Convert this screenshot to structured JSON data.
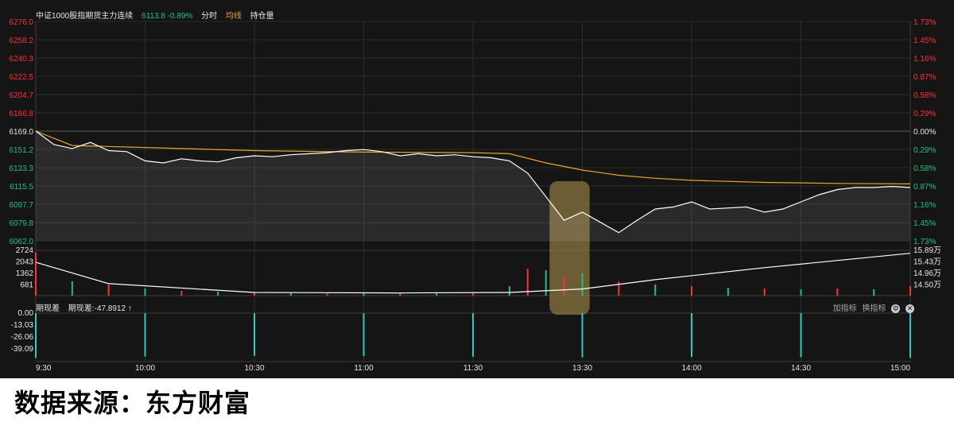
{
  "header": {
    "instrument": "中证1000股指期货主力连续",
    "price_change": "6113.8 -0.89%",
    "tab_intraday": "分时",
    "tab_avg": "均线",
    "tab_oi": "持仓量"
  },
  "sub_panel": {
    "title": "期现差",
    "value_label": "期现差:-47.8912 ↑",
    "add_indicator": "加指标",
    "switch_indicator": "换指标"
  },
  "source_caption": "数据来源：东方财富",
  "colors": {
    "price_line": "#ffffff",
    "avg_line": "#f0a030",
    "up": "#ff2f3a",
    "down": "#19c37d",
    "spread_bar": "#2cc9c9",
    "highlight": "#8a7640"
  },
  "chart_data": {
    "type": "line",
    "title": "",
    "x_ticks": [
      "9:30",
      "10:00",
      "10:30",
      "11:00",
      "11:30",
      "13:30",
      "14:00",
      "14:30",
      "15:00"
    ],
    "price_axis": {
      "ticks_left": [
        "6276.0",
        "6258.2",
        "6240.3",
        "6222.5",
        "6204.7",
        "6186.8",
        "6169.0",
        "6151.2",
        "6133.3",
        "6115.5",
        "6097.7",
        "6079.8",
        "6062.0"
      ],
      "ticks_right": [
        "1.73%",
        "1.45%",
        "1.16%",
        "0.87%",
        "0.58%",
        "0.29%",
        "0.00%",
        "0.29%",
        "0.58%",
        "0.87%",
        "1.16%",
        "1.45%",
        "1.73%"
      ],
      "ylim": [
        6062.0,
        6276.0
      ],
      "prev_close": 6169.0
    },
    "volume_axis": {
      "ticks_left": [
        "2724",
        "2043",
        "1362",
        "681"
      ],
      "ticks_right": [
        "15.89万",
        "15.43万",
        "14.96万",
        "14.50万"
      ]
    },
    "spread_axis": {
      "ticks_left": [
        "0.00",
        "-13.03",
        "-26.06",
        "-39.09"
      ]
    },
    "price_series": {
      "name": "",
      "x_minutes": [
        0,
        5,
        10,
        15,
        20,
        25,
        30,
        35,
        40,
        45,
        50,
        55,
        60,
        65,
        70,
        75,
        80,
        85,
        90,
        95,
        100,
        105,
        110,
        115,
        120,
        125,
        130,
        135,
        140,
        145,
        150,
        155,
        160,
        165,
        170,
        175,
        180,
        185,
        190,
        195,
        200,
        205,
        210,
        215,
        220,
        225,
        230,
        235,
        240
      ],
      "values": [
        6169.0,
        6156.0,
        6152.0,
        6158.0,
        6150.0,
        6149.0,
        6140.0,
        6138.0,
        6142.0,
        6140.0,
        6139.0,
        6143.0,
        6145.0,
        6144.0,
        6146.0,
        6147.0,
        6148.0,
        6150.0,
        6151.0,
        6149.0,
        6145.0,
        6147.0,
        6145.0,
        6146.0,
        6144.0,
        6143.0,
        6140.0,
        6128.0,
        6105.0,
        6082.0,
        6090.0,
        6080.0,
        6070.0,
        6082.0,
        6093.0,
        6095.0,
        6100.0,
        6093.0,
        6094.0,
        6095.0,
        6090.0,
        6093.0,
        6100.0,
        6107.0,
        6112.0,
        6114.0,
        6114.0,
        6115.0,
        6114.0
      ]
    },
    "avg_series": {
      "name": "",
      "x_minutes": [
        0,
        10,
        30,
        60,
        90,
        120,
        130,
        140,
        150,
        160,
        170,
        180,
        200,
        220,
        240
      ],
      "values": [
        6169.0,
        6155.0,
        6153.0,
        6150.0,
        6148.5,
        6148.0,
        6147.0,
        6138.0,
        6131.0,
        6126.0,
        6123.0,
        6121.0,
        6119.0,
        6118.0,
        6117.5
      ]
    },
    "volume_series": {
      "name": "",
      "x_minutes": [
        0,
        10,
        20,
        30,
        40,
        50,
        60,
        70,
        80,
        90,
        100,
        110,
        120,
        130,
        135,
        140,
        145,
        150,
        160,
        170,
        180,
        190,
        200,
        210,
        220,
        230,
        240
      ],
      "values": [
        2724,
        900,
        700,
        450,
        300,
        250,
        180,
        160,
        140,
        150,
        160,
        150,
        150,
        600,
        1700,
        1600,
        1200,
        1400,
        900,
        700,
        600,
        500,
        450,
        400,
        450,
        400,
        600
      ]
    },
    "oi_series": {
      "name": "",
      "x_minutes": [
        0,
        20,
        60,
        100,
        130,
        150,
        170,
        200,
        240
      ],
      "values": [
        15.55,
        14.75,
        14.42,
        14.4,
        14.42,
        14.55,
        14.9,
        15.35,
        15.89
      ]
    },
    "spread_series": {
      "name": "",
      "x_minutes": [
        0,
        30,
        60,
        90,
        120,
        150,
        180,
        210,
        240
      ],
      "values": [
        -47.9,
        -46.5,
        -45.8,
        -46.2,
        -46.8,
        -47.5,
        -46.9,
        -47.2,
        -47.89
      ]
    },
    "highlight_range_minutes": [
      141,
      152
    ]
  }
}
